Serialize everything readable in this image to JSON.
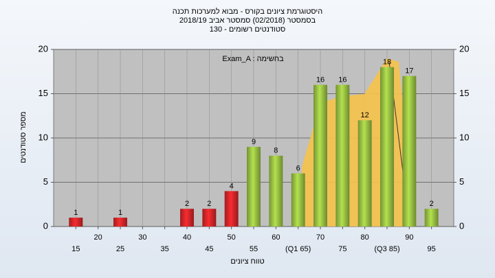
{
  "chart_data": {
    "type": "bar",
    "title": "היסטוגרמת ציונים בקורס - מבוא למערכות תכנה",
    "subtitle": "בסמסטר (02/2018) סמסטר אביב 2018/19",
    "subtitle2": "סטודנטים רשומים - 130",
    "annotation": "Exam_A : בחשימה",
    "x_label": "טווח ציונים",
    "y_label": "מספר סטודנטים",
    "x": [
      15,
      25,
      40,
      45,
      50,
      55,
      60,
      65,
      70,
      75,
      80,
      85,
      90,
      95
    ],
    "values": [
      1,
      1,
      2,
      2,
      4,
      9,
      8,
      6,
      16,
      16,
      12,
      18,
      17,
      2
    ],
    "colors": [
      "#d8262a",
      "#d8262a",
      "#d8262a",
      "#d8262a",
      "#d8262a",
      "#9cc444",
      "#9cc444",
      "#9cc444",
      "#9cc444",
      "#9cc444",
      "#9cc444",
      "#9cc444",
      "#9cc444",
      "#9cc444"
    ],
    "xlim": [
      10,
      100
    ],
    "xticks": [
      15,
      20,
      25,
      30,
      35,
      40,
      45,
      50,
      55,
      60,
      {
        "value": 65,
        "label": "(Q1 65)"
      },
      70,
      75,
      80,
      {
        "value": 85,
        "label": "(Q3 85)"
      },
      90,
      95
    ],
    "ylim": [
      0,
      20
    ],
    "yticks": [
      0,
      5,
      10,
      15,
      20
    ],
    "grid": true
  }
}
